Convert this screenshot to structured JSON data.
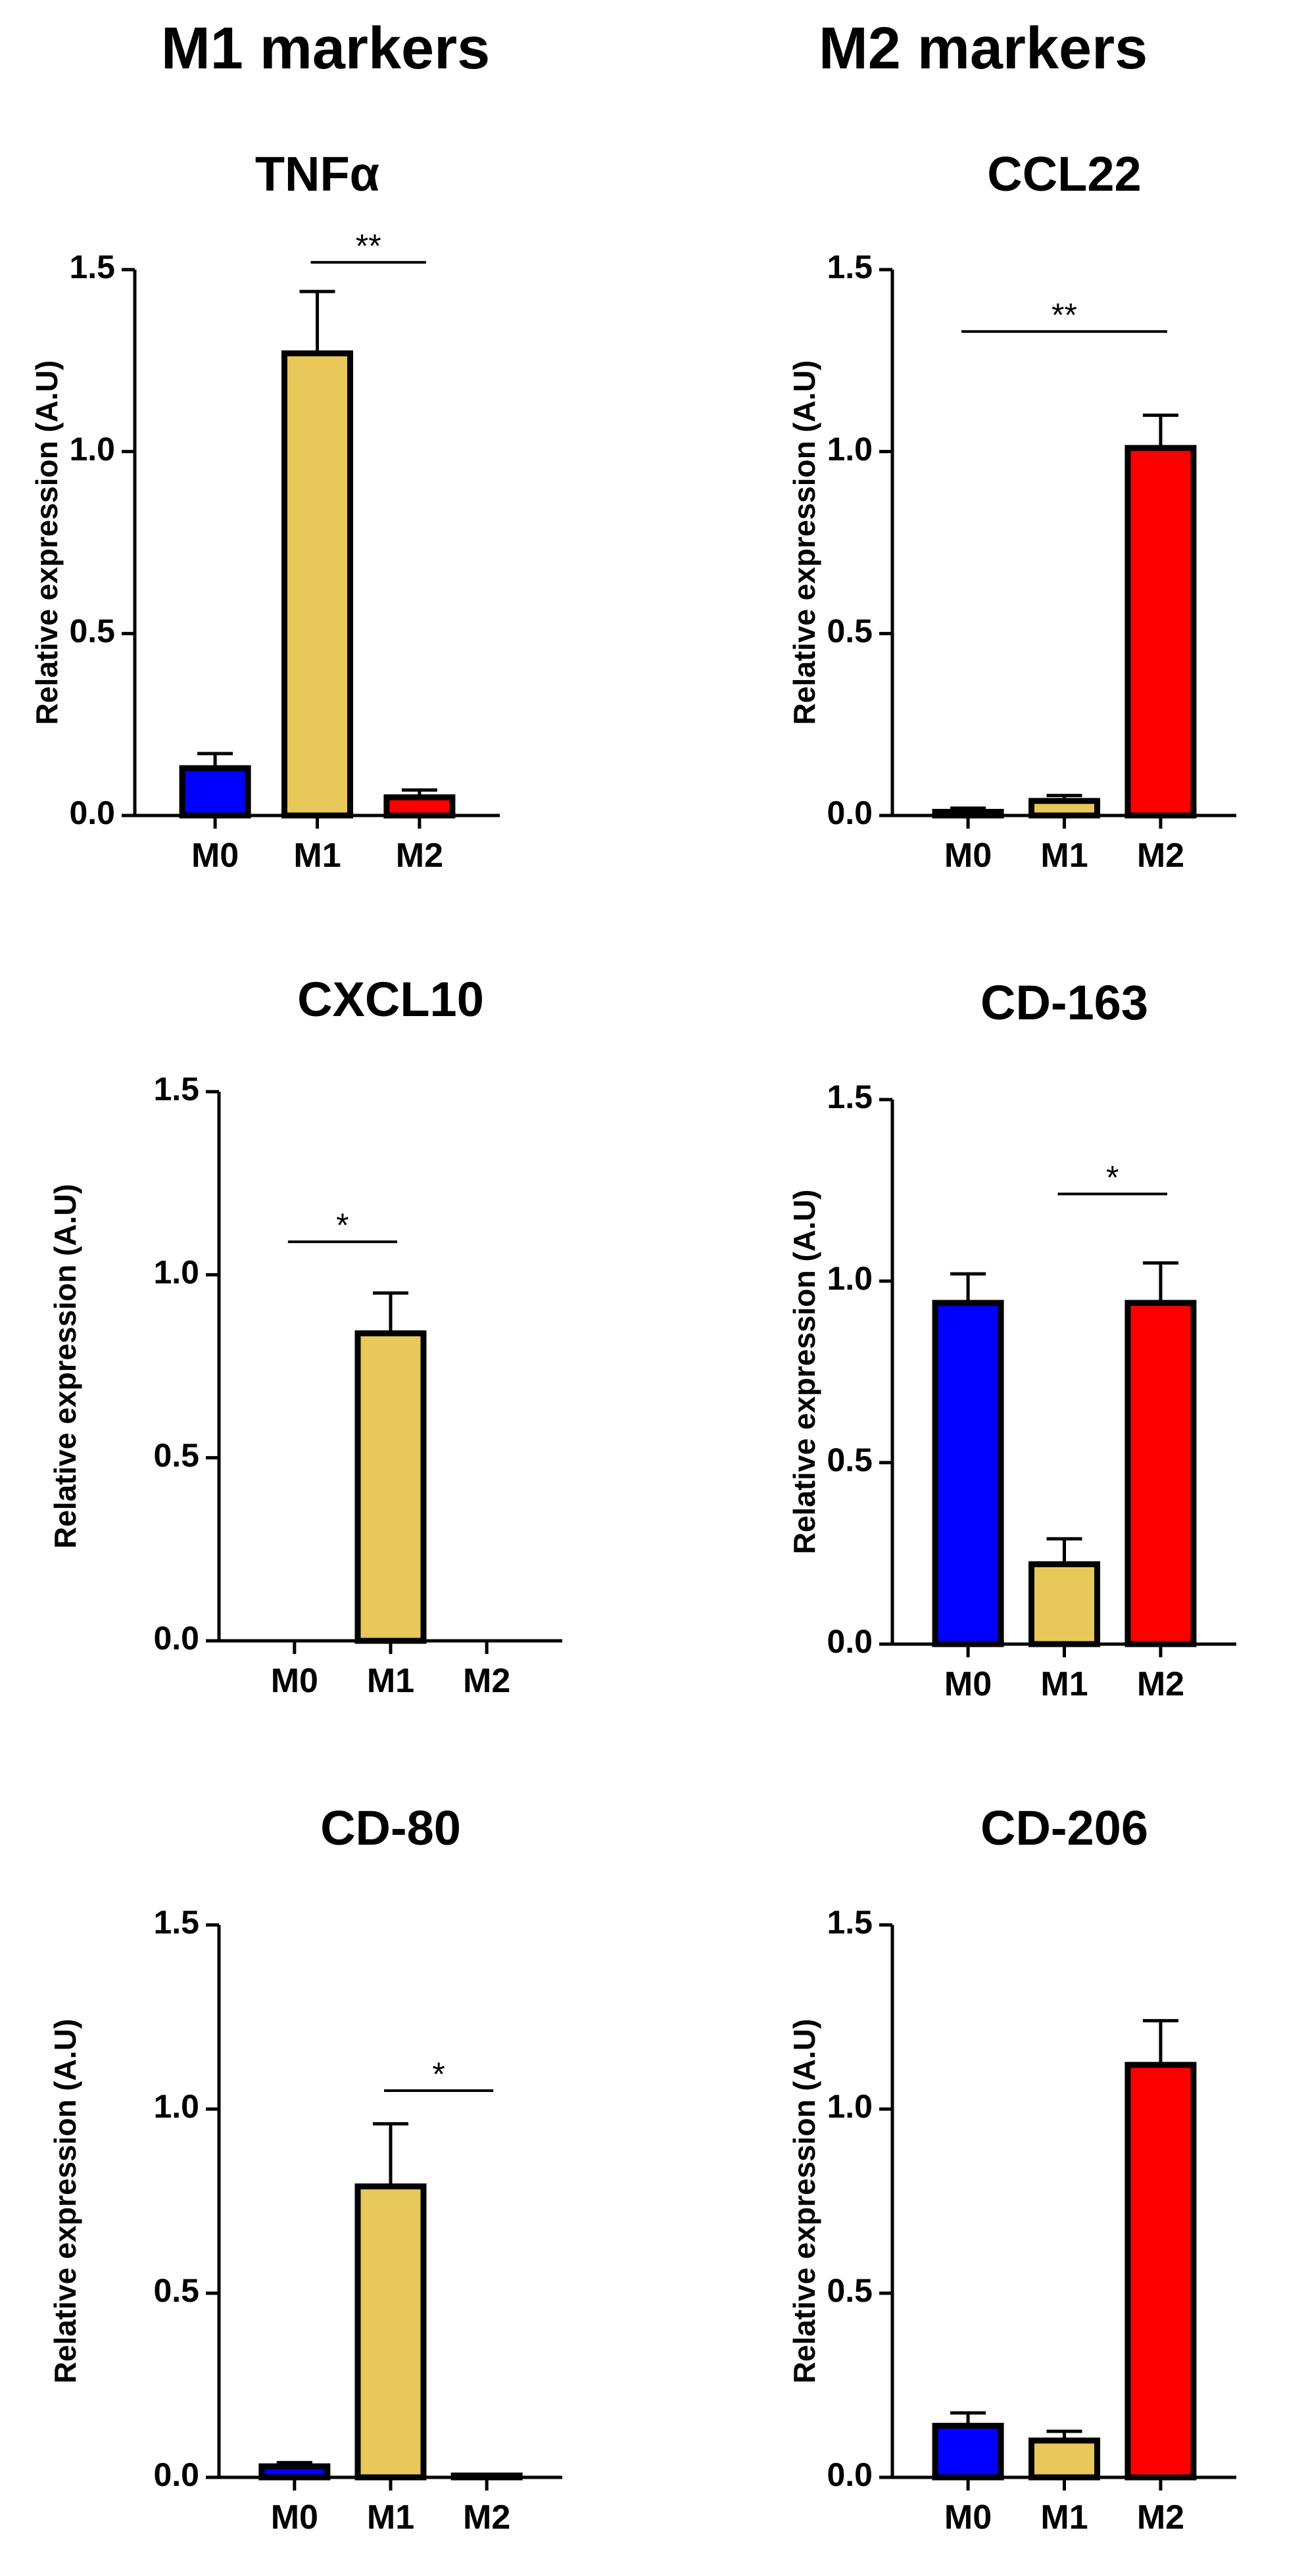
{
  "headings": {
    "left": "M1 markers",
    "right": "M2 markers"
  },
  "colors": {
    "M0": "#0000FF",
    "M1": "#E8C85A",
    "M2": "#FF0000",
    "axis": "#000000"
  },
  "chart_data": [
    {
      "type": "bar",
      "title": "TNFα",
      "xlabel": "",
      "ylabel": "Relative expression (A.U)",
      "ylim": [
        0,
        1.5
      ],
      "yticks": [
        "0.0",
        "0.5",
        "1.0",
        "1.5"
      ],
      "categories": [
        "M0",
        "M1",
        "M2"
      ],
      "values": [
        0.13,
        1.27,
        0.05
      ],
      "errors": [
        0.04,
        0.17,
        0.02
      ],
      "significance": [
        {
          "from": "M1",
          "to": "M2",
          "y": 1.52,
          "label": "**"
        }
      ]
    },
    {
      "type": "bar",
      "title": "CCL22",
      "xlabel": "",
      "ylabel": "Relative expression (A.U)",
      "ylim": [
        0,
        1.5
      ],
      "yticks": [
        "0.0",
        "0.5",
        "1.0",
        "1.5"
      ],
      "categories": [
        "M0",
        "M1",
        "M2"
      ],
      "values": [
        0.01,
        0.04,
        1.01
      ],
      "errors": [
        0.01,
        0.015,
        0.09
      ],
      "significance": [
        {
          "from": "M0",
          "to": "M2",
          "y": 1.33,
          "label": "**"
        }
      ]
    },
    {
      "type": "bar",
      "title": "CXCL10",
      "xlabel": "",
      "ylabel": "Relative expression (A.U)",
      "ylim": [
        0,
        1.5
      ],
      "yticks": [
        "0.0",
        "0.5",
        "1.0",
        "1.5"
      ],
      "categories": [
        "M0",
        "M1",
        "M2"
      ],
      "values": [
        0.0,
        0.84,
        0.0
      ],
      "errors": [
        0.0,
        0.11,
        0.0
      ],
      "significance": [
        {
          "from": "M0",
          "to": "M1",
          "y": 1.09,
          "label": "*"
        }
      ]
    },
    {
      "type": "bar",
      "title": "CD-163",
      "xlabel": "",
      "ylabel": "Relative expression (A.U)",
      "ylim": [
        0,
        1.5
      ],
      "yticks": [
        "0.0",
        "0.5",
        "1.0",
        "1.5"
      ],
      "categories": [
        "M0",
        "M1",
        "M2"
      ],
      "values": [
        0.94,
        0.22,
        0.94
      ],
      "errors": [
        0.08,
        0.07,
        0.11
      ],
      "significance": [
        {
          "from": "M1",
          "to": "M2",
          "y": 1.24,
          "label": "*"
        }
      ]
    },
    {
      "type": "bar",
      "title": "CD-80",
      "xlabel": "",
      "ylabel": "Relative expression (A.U)",
      "ylim": [
        0,
        1.5
      ],
      "yticks": [
        "0.0",
        "0.5",
        "1.0",
        "1.5"
      ],
      "categories": [
        "M0",
        "M1",
        "M2"
      ],
      "values": [
        0.03,
        0.79,
        0.005
      ],
      "errors": [
        0.01,
        0.17,
        0.003
      ],
      "significance": [
        {
          "from": "M1",
          "to": "M2",
          "y": 1.05,
          "label": "*"
        }
      ]
    },
    {
      "type": "bar",
      "title": "CD-206",
      "xlabel": "",
      "ylabel": "Relative expression (A.U)",
      "ylim": [
        0,
        1.5
      ],
      "yticks": [
        "0.0",
        "0.5",
        "1.0",
        "1.5"
      ],
      "categories": [
        "M0",
        "M1",
        "M2"
      ],
      "values": [
        0.14,
        0.1,
        1.12
      ],
      "errors": [
        0.035,
        0.025,
        0.12
      ],
      "significance": []
    }
  ]
}
